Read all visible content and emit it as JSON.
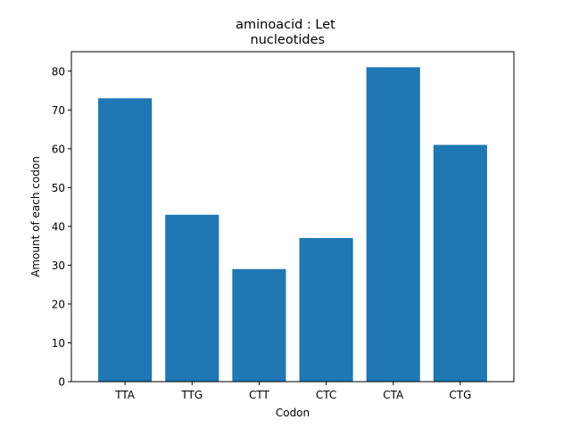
{
  "chart_data": {
    "type": "bar",
    "title_line1": "aminoacid : Let",
    "title_line2": " nucleotides",
    "xlabel": "Codon",
    "ylabel": "Amount of each codon",
    "categories": [
      "TTA",
      "TTG",
      "CTT",
      "CTC",
      "CTA",
      "CTG"
    ],
    "values": [
      73,
      43,
      29,
      37,
      81,
      61
    ],
    "ylim": [
      0,
      85
    ],
    "yticks": [
      "0",
      "10",
      "20",
      "30",
      "40",
      "50",
      "60",
      "70",
      "80"
    ],
    "bar_color": "#1f77b4",
    "grid": false
  }
}
